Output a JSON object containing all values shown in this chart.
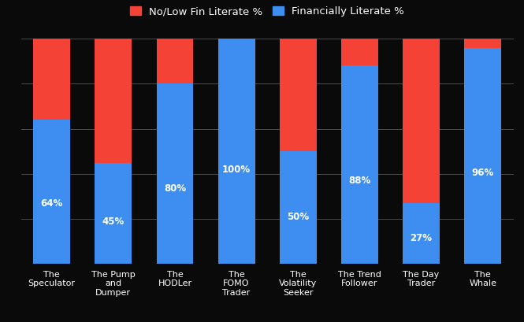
{
  "categories": [
    "The\nSpeculator",
    "The Pump\nand\nDumper",
    "The\nHODLer",
    "The\nFOMO\nTrader",
    "The\nVolatility\nSeeker",
    "The Trend\nFollower",
    "The Day\nTrader",
    "The\nWhale"
  ],
  "fin_literate": [
    64,
    45,
    80,
    100,
    50,
    88,
    27,
    96
  ],
  "no_low_literate": [
    36,
    55,
    20,
    0,
    50,
    12,
    73,
    4
  ],
  "bar_color_blue": "#3d8ef0",
  "bar_color_red": "#f44336",
  "background_color": "#0a0a0a",
  "text_color": "#ffffff",
  "grid_color": "#555555",
  "legend_label_red": "No/Low Fin Literate %",
  "legend_label_blue": "Financially Literate %",
  "label_fontsize": 8.5,
  "tick_fontsize": 8,
  "legend_fontsize": 9.5,
  "bar_width": 0.6,
  "ylim": [
    0,
    100
  ],
  "figsize": [
    6.65,
    4.09
  ],
  "dpi": 100
}
